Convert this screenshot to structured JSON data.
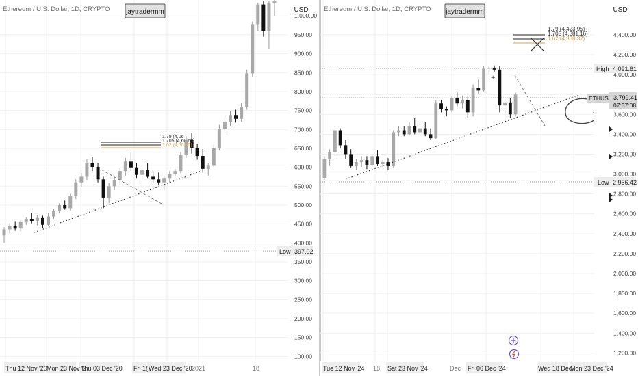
{
  "chart_data": [
    {
      "type": "candlestick",
      "symbol_title": "Ethereum / U.S. Dollar, 1D, CRYPTO",
      "author_tag": "jaytradermm",
      "currency_label": "USD",
      "y_ticks": [
        "1,000.00",
        "950.00",
        "900.00",
        "850.00",
        "800.00",
        "750.00",
        "700.00",
        "650.00",
        "600.00",
        "550.00",
        "500.00",
        "450.00",
        "400.00",
        "350.00",
        "300.00",
        "250.00",
        "200.00",
        "150.00",
        "100.00"
      ],
      "y_tick_values": [
        1000,
        950,
        900,
        850,
        800,
        750,
        700,
        650,
        600,
        550,
        500,
        450,
        400,
        350,
        300,
        250,
        200,
        150,
        100
      ],
      "ylim": [
        88,
        1042
      ],
      "x_labels": [
        "Thu 12 Nov '20",
        "Mon 23 Nov '2",
        "Thu 03 Dec '20",
        "Fri 1(",
        "Wed 23 Dec '20",
        "2021",
        "18"
      ],
      "low_marker": {
        "label": "Low",
        "value_text": "397.02",
        "value": 397.02
      },
      "fib_labels": [
        "1.79 (4,06",
        "1.705 (4,60.60)",
        "1.62 (4,60.00)"
      ],
      "candles": [
        {
          "o": 420,
          "h": 442,
          "l": 400,
          "c": 436
        },
        {
          "o": 436,
          "h": 452,
          "l": 425,
          "c": 445
        },
        {
          "o": 445,
          "h": 456,
          "l": 432,
          "c": 438
        },
        {
          "o": 438,
          "h": 460,
          "l": 430,
          "c": 455
        },
        {
          "o": 455,
          "h": 468,
          "l": 448,
          "c": 462
        },
        {
          "o": 462,
          "h": 480,
          "l": 452,
          "c": 458
        },
        {
          "o": 458,
          "h": 474,
          "l": 446,
          "c": 466
        },
        {
          "o": 466,
          "h": 472,
          "l": 440,
          "c": 448
        },
        {
          "o": 448,
          "h": 478,
          "l": 444,
          "c": 470
        },
        {
          "o": 470,
          "h": 490,
          "l": 462,
          "c": 484
        },
        {
          "o": 484,
          "h": 505,
          "l": 478,
          "c": 500
        },
        {
          "o": 500,
          "h": 512,
          "l": 488,
          "c": 492
        },
        {
          "o": 492,
          "h": 530,
          "l": 486,
          "c": 524
        },
        {
          "o": 524,
          "h": 568,
          "l": 516,
          "c": 560
        },
        {
          "o": 560,
          "h": 585,
          "l": 548,
          "c": 575
        },
        {
          "o": 575,
          "h": 622,
          "l": 566,
          "c": 612
        },
        {
          "o": 612,
          "h": 628,
          "l": 590,
          "c": 600
        },
        {
          "o": 600,
          "h": 612,
          "l": 560,
          "c": 568
        },
        {
          "o": 568,
          "h": 575,
          "l": 492,
          "c": 520
        },
        {
          "o": 520,
          "h": 558,
          "l": 505,
          "c": 550
        },
        {
          "o": 550,
          "h": 575,
          "l": 540,
          "c": 566
        },
        {
          "o": 566,
          "h": 598,
          "l": 552,
          "c": 590
        },
        {
          "o": 590,
          "h": 625,
          "l": 578,
          "c": 615
        },
        {
          "o": 615,
          "h": 640,
          "l": 590,
          "c": 598
        },
        {
          "o": 598,
          "h": 612,
          "l": 570,
          "c": 580
        },
        {
          "o": 580,
          "h": 600,
          "l": 560,
          "c": 592
        },
        {
          "o": 592,
          "h": 610,
          "l": 570,
          "c": 575
        },
        {
          "o": 575,
          "h": 590,
          "l": 558,
          "c": 568
        },
        {
          "o": 568,
          "h": 586,
          "l": 552,
          "c": 560
        },
        {
          "o": 560,
          "h": 578,
          "l": 540,
          "c": 570
        },
        {
          "o": 570,
          "h": 590,
          "l": 560,
          "c": 582
        },
        {
          "o": 582,
          "h": 596,
          "l": 575,
          "c": 590
        },
        {
          "o": 590,
          "h": 640,
          "l": 584,
          "c": 632
        },
        {
          "o": 632,
          "h": 682,
          "l": 625,
          "c": 672
        },
        {
          "o": 672,
          "h": 690,
          "l": 636,
          "c": 650
        },
        {
          "o": 650,
          "h": 662,
          "l": 620,
          "c": 630
        },
        {
          "o": 630,
          "h": 648,
          "l": 586,
          "c": 596
        },
        {
          "o": 596,
          "h": 610,
          "l": 578,
          "c": 604
        },
        {
          "o": 604,
          "h": 660,
          "l": 598,
          "c": 650
        },
        {
          "o": 650,
          "h": 712,
          "l": 644,
          "c": 702
        },
        {
          "o": 702,
          "h": 735,
          "l": 690,
          "c": 720
        },
        {
          "o": 720,
          "h": 748,
          "l": 708,
          "c": 738
        },
        {
          "o": 738,
          "h": 752,
          "l": 718,
          "c": 728
        },
        {
          "o": 728,
          "h": 770,
          "l": 720,
          "c": 760
        },
        {
          "o": 760,
          "h": 858,
          "l": 752,
          "c": 848
        },
        {
          "o": 848,
          "h": 985,
          "l": 840,
          "c": 978
        },
        {
          "o": 978,
          "h": 1035,
          "l": 960,
          "c": 1030
        },
        {
          "o": 1030,
          "h": 1040,
          "l": 945,
          "c": 960
        },
        {
          "o": 960,
          "h": 1040,
          "l": 912,
          "c": 1035
        },
        {
          "o": 1035,
          "h": 1042,
          "l": 1000,
          "c": 1040
        }
      ]
    },
    {
      "type": "candlestick",
      "symbol_title": "Ethereum / U.S. Dollar, 1D, CRYPTO",
      "author_tag": "jaytradermm",
      "currency_label": "USD",
      "y_ticks": [
        "4,400.00",
        "4,200.00",
        "4,000.00",
        "3,800.00",
        "3,600.00",
        "3,400.00",
        "3,200.00",
        "3,000.00",
        "2,800.00",
        "2,600.00",
        "2,400.00",
        "2,200.00",
        "2,000.00",
        "1,800.00",
        "1,600.00",
        "1,400.00",
        "1,200.00"
      ],
      "y_tick_values": [
        4400,
        4200,
        4000,
        3800,
        3600,
        3400,
        3200,
        3000,
        2800,
        2600,
        2400,
        2200,
        2000,
        1800,
        1600,
        1400,
        1200
      ],
      "ylim": [
        1120,
        4750
      ],
      "x_labels": [
        "Tue 12 Nov '24",
        "18",
        "Sat 23 Nov '24",
        "Dec",
        "Fri 06 Dec '24",
        "Wed 18 Dec",
        "Mon 23 Dec '24"
      ],
      "high_marker": {
        "label": "High",
        "value_text": "4,091.61",
        "value": 4091.61
      },
      "low_marker": {
        "label": "Low",
        "value_text": "2,956.42",
        "value": 2956.42
      },
      "price_tag": {
        "symbol": "ETHUSD",
        "price_text": "3,799.41",
        "countdown": "07:37:08",
        "value": 3799.41
      },
      "fib_labels": [
        "1.79 (4,423.95)",
        "1.705 (4,381.16)",
        "1.62 (4,338.37)"
      ],
      "candles": [
        {
          "o": 2960,
          "h": 3180,
          "l": 2940,
          "c": 3150
        },
        {
          "o": 3150,
          "h": 3250,
          "l": 3080,
          "c": 3220
        },
        {
          "o": 3220,
          "h": 3480,
          "l": 3200,
          "c": 3440
        },
        {
          "o": 3440,
          "h": 3460,
          "l": 3260,
          "c": 3290
        },
        {
          "o": 3290,
          "h": 3340,
          "l": 3150,
          "c": 3200
        },
        {
          "o": 3200,
          "h": 3250,
          "l": 3060,
          "c": 3080
        },
        {
          "o": 3080,
          "h": 3150,
          "l": 3040,
          "c": 3120
        },
        {
          "o": 3120,
          "h": 3180,
          "l": 3070,
          "c": 3140
        },
        {
          "o": 3140,
          "h": 3180,
          "l": 3050,
          "c": 3090
        },
        {
          "o": 3090,
          "h": 3200,
          "l": 3080,
          "c": 3180
        },
        {
          "o": 3180,
          "h": 3240,
          "l": 3080,
          "c": 3100
        },
        {
          "o": 3100,
          "h": 3140,
          "l": 3060,
          "c": 3120
        },
        {
          "o": 3120,
          "h": 3160,
          "l": 3040,
          "c": 3080
        },
        {
          "o": 3080,
          "h": 3440,
          "l": 3060,
          "c": 3420
        },
        {
          "o": 3420,
          "h": 3480,
          "l": 3380,
          "c": 3440
        },
        {
          "o": 3440,
          "h": 3480,
          "l": 3380,
          "c": 3400
        },
        {
          "o": 3400,
          "h": 3520,
          "l": 3390,
          "c": 3480
        },
        {
          "o": 3480,
          "h": 3560,
          "l": 3400,
          "c": 3420
        },
        {
          "o": 3420,
          "h": 3500,
          "l": 3400,
          "c": 3460
        },
        {
          "o": 3460,
          "h": 3520,
          "l": 3380,
          "c": 3400
        },
        {
          "o": 3400,
          "h": 3460,
          "l": 3340,
          "c": 3360
        },
        {
          "o": 3360,
          "h": 3740,
          "l": 3350,
          "c": 3710
        },
        {
          "o": 3710,
          "h": 3740,
          "l": 3620,
          "c": 3650
        },
        {
          "o": 3650,
          "h": 3680,
          "l": 3580,
          "c": 3640
        },
        {
          "o": 3640,
          "h": 3780,
          "l": 3620,
          "c": 3760
        },
        {
          "o": 3760,
          "h": 3820,
          "l": 3680,
          "c": 3710
        },
        {
          "o": 3710,
          "h": 3790,
          "l": 3660,
          "c": 3740
        },
        {
          "o": 3740,
          "h": 3780,
          "l": 3560,
          "c": 3620
        },
        {
          "o": 3620,
          "h": 3900,
          "l": 3580,
          "c": 3870
        },
        {
          "o": 3870,
          "h": 3950,
          "l": 3800,
          "c": 3840
        },
        {
          "o": 3840,
          "h": 4090,
          "l": 3830,
          "c": 4060
        },
        {
          "o": 4060,
          "h": 4080,
          "l": 4000,
          "c": 4070
        },
        {
          "o": 4070,
          "h": 4092,
          "l": 4030,
          "c": 4050
        },
        {
          "o": 4050,
          "h": 4090,
          "l": 3620,
          "c": 3690
        },
        {
          "o": 3690,
          "h": 3740,
          "l": 3520,
          "c": 3720
        },
        {
          "o": 3720,
          "h": 3760,
          "l": 3560,
          "c": 3600
        },
        {
          "o": 3600,
          "h": 3820,
          "l": 3580,
          "c": 3799
        }
      ]
    }
  ]
}
